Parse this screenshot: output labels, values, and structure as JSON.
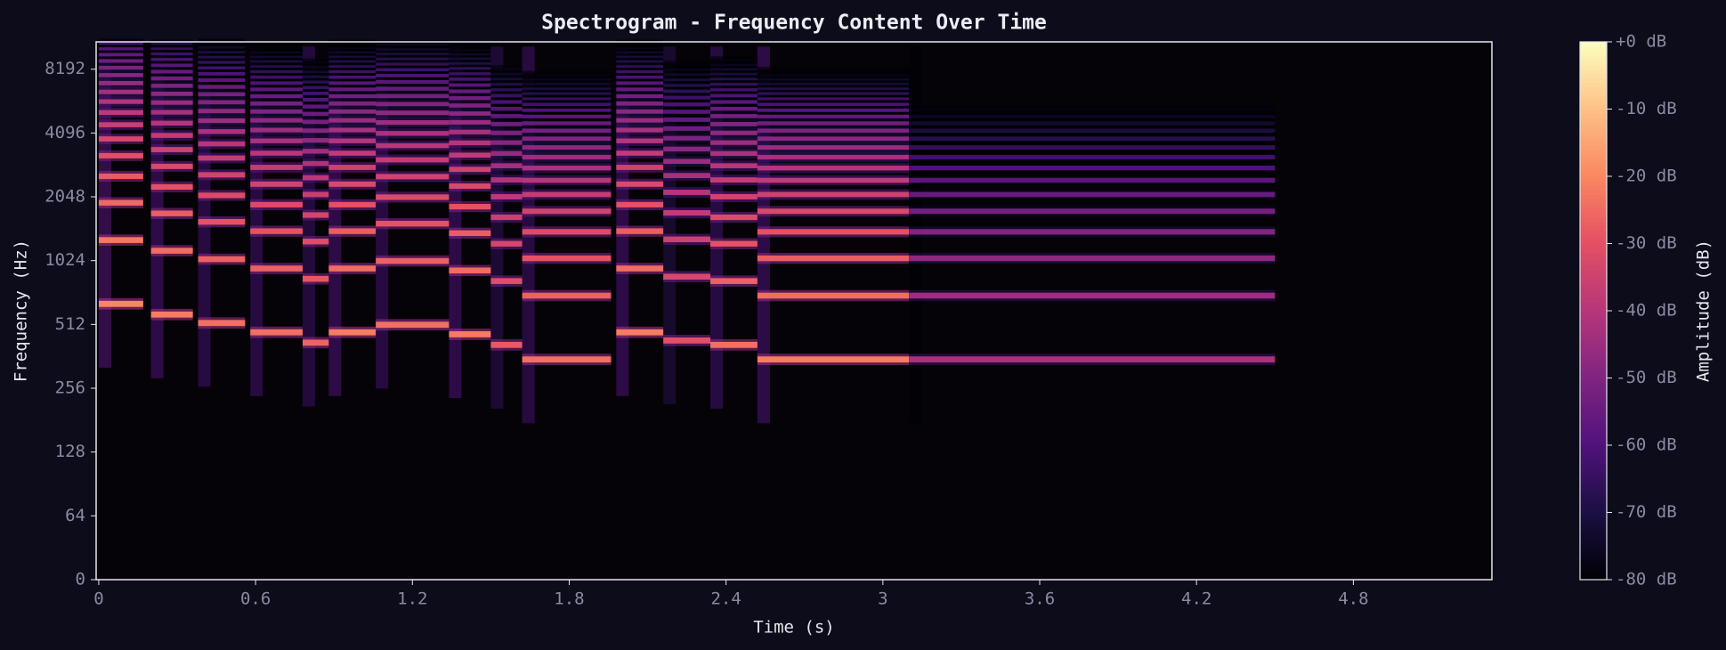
{
  "chart_data": {
    "type": "spectrogram",
    "title": "Spectrogram - Frequency Content Over Time",
    "xlabel": "Time (s)",
    "ylabel": "Frequency (Hz)",
    "xlim": [
      -0.01,
      5.33
    ],
    "xticks": [
      0,
      0.6,
      1.2,
      1.8,
      2.4,
      3,
      3.6,
      4.2,
      4.8
    ],
    "ylim": [
      0,
      11025
    ],
    "yscale": "symlog",
    "linthresh": 64,
    "yticks": [
      0,
      64,
      128,
      256,
      512,
      1024,
      2048,
      4096,
      8192
    ],
    "notes": [
      {
        "start": 0,
        "end": 0.17,
        "freq": 640,
        "level": -20
      },
      {
        "start": 0.2,
        "end": 0.36,
        "freq": 570,
        "level": -22
      },
      {
        "start": 0.38,
        "end": 0.56,
        "freq": 520,
        "level": -24
      },
      {
        "start": 0.58,
        "end": 0.78,
        "freq": 470,
        "level": -24
      },
      {
        "start": 0.78,
        "end": 0.88,
        "freq": 420,
        "level": -26
      },
      {
        "start": 0.88,
        "end": 1.06,
        "freq": 470,
        "level": -22
      },
      {
        "start": 1.06,
        "end": 1.34,
        "freq": 510,
        "level": -24
      },
      {
        "start": 1.34,
        "end": 1.5,
        "freq": 460,
        "level": -22
      },
      {
        "start": 1.5,
        "end": 1.62,
        "freq": 410,
        "level": -28
      },
      {
        "start": 1.62,
        "end": 1.96,
        "freq": 350,
        "level": -24
      },
      {
        "start": 1.98,
        "end": 2.16,
        "freq": 470,
        "level": -22
      },
      {
        "start": 2.16,
        "end": 2.34,
        "freq": 430,
        "level": -30
      },
      {
        "start": 2.34,
        "end": 2.52,
        "freq": 410,
        "level": -24
      },
      {
        "start": 2.52,
        "end": 3.1,
        "freq": 350,
        "level": -22
      },
      {
        "start": 3.1,
        "end": 4.5,
        "freq": 350,
        "level": -42
      }
    ],
    "colorbar": {
      "label": "Amplitude (dB)",
      "cmap": "magma",
      "clim": [
        -80,
        0
      ],
      "ticks": [
        {
          "value": 0,
          "label": "+0 dB"
        },
        {
          "value": -10,
          "label": "-10 dB"
        },
        {
          "value": -20,
          "label": "-20 dB"
        },
        {
          "value": -30,
          "label": "-30 dB"
        },
        {
          "value": -40,
          "label": "-40 dB"
        },
        {
          "value": -50,
          "label": "-50 dB"
        },
        {
          "value": -60,
          "label": "-60 dB"
        },
        {
          "value": -70,
          "label": "-70 dB"
        },
        {
          "value": -80,
          "label": "-80 dB"
        }
      ]
    }
  }
}
